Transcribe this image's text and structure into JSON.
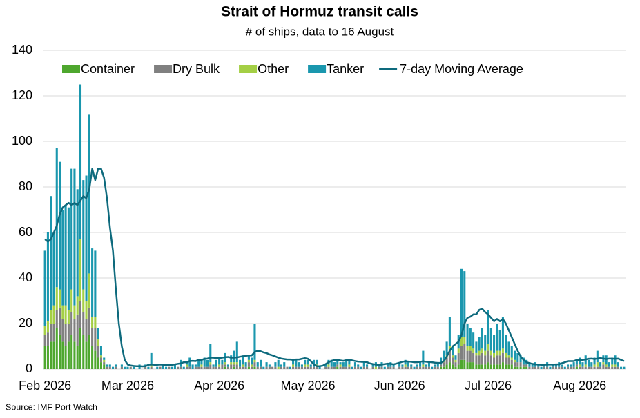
{
  "chart_data": {
    "type": "bar",
    "stacked": true,
    "title": "Strait of Hormuz transit calls",
    "subtitle": "# of ships, data to 16 August",
    "source": "Source: IMF Port Watch",
    "ylim": [
      0,
      140
    ],
    "yticks": [
      0,
      20,
      40,
      60,
      80,
      100,
      120,
      140
    ],
    "grid": true,
    "legend": "top",
    "categories": [
      "Feb 2026",
      null,
      null,
      null,
      null,
      null,
      null,
      null,
      null,
      null,
      null,
      null,
      null,
      null,
      null,
      null,
      null,
      null,
      null,
      null,
      null,
      null,
      null,
      null,
      null,
      null,
      null,
      null,
      "Mar 2026",
      null,
      null,
      null,
      null,
      null,
      null,
      null,
      null,
      null,
      null,
      null,
      null,
      null,
      null,
      null,
      null,
      null,
      null,
      null,
      null,
      null,
      null,
      null,
      null,
      null,
      null,
      null,
      null,
      null,
      null,
      "Apr 2026",
      null,
      null,
      null,
      null,
      null,
      null,
      null,
      null,
      null,
      null,
      null,
      null,
      null,
      null,
      null,
      null,
      null,
      null,
      null,
      null,
      null,
      null,
      null,
      null,
      null,
      null,
      null,
      null,
      null,
      "May 2026",
      null,
      null,
      null,
      null,
      null,
      null,
      null,
      null,
      null,
      null,
      null,
      null,
      null,
      null,
      null,
      null,
      null,
      null,
      null,
      null,
      null,
      null,
      null,
      null,
      null,
      null,
      null,
      null,
      null,
      null,
      "Jun 2026",
      null,
      null,
      null,
      null,
      null,
      null,
      null,
      null,
      null,
      null,
      null,
      null,
      null,
      null,
      null,
      null,
      null,
      null,
      null,
      null,
      null,
      null,
      null,
      null,
      null,
      null,
      null,
      null,
      null,
      "Jul 2026",
      null,
      null,
      null,
      null,
      null,
      null,
      null,
      null,
      null,
      null,
      null,
      null,
      null,
      null,
      null,
      null,
      null,
      null,
      null,
      null,
      null,
      null,
      null,
      null,
      null,
      null,
      null,
      null,
      null,
      null,
      "Aug 2026",
      null,
      null,
      null,
      null,
      null,
      null,
      null,
      null,
      null,
      null,
      null,
      null,
      null,
      null,
      null
    ],
    "series": [
      {
        "name": "Container",
        "color": "#4ea72e",
        "values": [
          10,
          10,
          12,
          12,
          18,
          15,
          12,
          10,
          12,
          15,
          12,
          10,
          18,
          15,
          12,
          15,
          10,
          8,
          5,
          3,
          2,
          0,
          0,
          0,
          0,
          0,
          0,
          0,
          0,
          0,
          0,
          0,
          0,
          0,
          0,
          0,
          0,
          0,
          0,
          0,
          0,
          0,
          0,
          0,
          0,
          0,
          0,
          0,
          0,
          0,
          0,
          0,
          0,
          0,
          0,
          0,
          0,
          0,
          0,
          0,
          0,
          1,
          0,
          0,
          1,
          0,
          0,
          0,
          0,
          1,
          0,
          1,
          0,
          0,
          0,
          0,
          0,
          0,
          0,
          0,
          0,
          0,
          0,
          0,
          0,
          0,
          0,
          0,
          0,
          0,
          0,
          0,
          0,
          0,
          0,
          0,
          0,
          0,
          0,
          1,
          0,
          0,
          0,
          0,
          0,
          0,
          0,
          0,
          0,
          0,
          0,
          0,
          0,
          0,
          0,
          0,
          0,
          0,
          0,
          0,
          0,
          0,
          0,
          0,
          0,
          0,
          0,
          0,
          0,
          0,
          0,
          0,
          0,
          0,
          1,
          1,
          2,
          3,
          2,
          1,
          2,
          4,
          4,
          3,
          3,
          3,
          2,
          2,
          2,
          2,
          3,
          2,
          2,
          2,
          2,
          3,
          2,
          2,
          2,
          1,
          1,
          1,
          1,
          1,
          0,
          0,
          0,
          0,
          0,
          0,
          0,
          0,
          0,
          0,
          0,
          0,
          0,
          0,
          0,
          0,
          1,
          0,
          0,
          0,
          0,
          0,
          0,
          0,
          0,
          0,
          0,
          0,
          0,
          0,
          0,
          0,
          0
        ]
      },
      {
        "name": "Dry Bulk",
        "color": "#808080",
        "values": [
          5,
          6,
          8,
          8,
          8,
          12,
          10,
          10,
          8,
          10,
          10,
          14,
          12,
          10,
          10,
          12,
          8,
          10,
          5,
          2,
          1,
          1,
          1,
          0,
          1,
          0,
          1,
          0,
          0,
          1,
          0,
          0,
          0,
          0,
          1,
          0,
          1,
          0,
          0,
          1,
          0,
          0,
          1,
          0,
          0,
          1,
          1,
          0,
          1,
          1,
          0,
          1,
          1,
          1,
          1,
          1,
          2,
          1,
          1,
          1,
          2,
          1,
          1,
          2,
          1,
          2,
          1,
          1,
          1,
          2,
          1,
          2,
          1,
          1,
          0,
          1,
          1,
          1,
          1,
          0,
          1,
          1,
          1,
          0,
          1,
          1,
          1,
          1,
          1,
          1,
          1,
          1,
          1,
          0,
          0,
          1,
          1,
          1,
          1,
          1,
          1,
          1,
          1,
          1,
          0,
          1,
          1,
          0,
          1,
          1,
          0,
          1,
          0,
          1,
          1,
          0,
          1,
          1,
          1,
          0,
          1,
          1,
          1,
          1,
          1,
          0,
          1,
          1,
          1,
          1,
          1,
          0,
          1,
          1,
          1,
          2,
          3,
          5,
          3,
          2,
          5,
          6,
          7,
          5,
          5,
          4,
          4,
          4,
          5,
          4,
          5,
          4,
          3,
          4,
          4,
          4,
          3,
          3,
          2,
          2,
          2,
          2,
          1,
          1,
          1,
          1,
          1,
          1,
          0,
          1,
          1,
          0,
          1,
          1,
          1,
          1,
          0,
          1,
          1,
          1,
          1,
          1,
          1,
          1,
          1,
          1,
          1,
          1,
          1,
          2,
          1,
          1,
          1,
          1,
          1,
          0,
          0
        ]
      },
      {
        "name": "Other",
        "color": "#a4cf45",
        "values": [
          4,
          5,
          6,
          8,
          10,
          8,
          6,
          8,
          6,
          10,
          6,
          8,
          27,
          10,
          8,
          15,
          5,
          5,
          3,
          1,
          1,
          0,
          0,
          0,
          0,
          0,
          0,
          0,
          0,
          0,
          0,
          0,
          0,
          0,
          0,
          0,
          1,
          0,
          0,
          0,
          0,
          0,
          0,
          0,
          0,
          0,
          0,
          0,
          1,
          0,
          0,
          0,
          0,
          1,
          0,
          0,
          1,
          0,
          0,
          1,
          0,
          1,
          0,
          1,
          1,
          1,
          0,
          1,
          0,
          1,
          1,
          1,
          0,
          0,
          0,
          0,
          0,
          0,
          0,
          1,
          0,
          0,
          0,
          0,
          1,
          0,
          0,
          0,
          1,
          1,
          0,
          0,
          1,
          0,
          0,
          0,
          1,
          0,
          0,
          0,
          1,
          0,
          0,
          1,
          0,
          0,
          0,
          0,
          0,
          0,
          0,
          0,
          1,
          0,
          0,
          0,
          0,
          0,
          0,
          0,
          0,
          0,
          1,
          0,
          0,
          0,
          0,
          0,
          1,
          0,
          0,
          0,
          0,
          0,
          0,
          1,
          1,
          2,
          1,
          1,
          2,
          4,
          3,
          2,
          2,
          2,
          1,
          2,
          2,
          2,
          3,
          2,
          2,
          2,
          2,
          2,
          2,
          1,
          1,
          1,
          0,
          0,
          0,
          0,
          0,
          0,
          0,
          0,
          0,
          0,
          0,
          0,
          0,
          0,
          0,
          0,
          0,
          0,
          0,
          0,
          0,
          1,
          0,
          1,
          0,
          0,
          1,
          2,
          0,
          1,
          1,
          0,
          1,
          1,
          0,
          0,
          0
        ]
      },
      {
        "name": "Tanker",
        "color": "#1a97ae",
        "values": [
          33,
          39,
          50,
          32,
          61,
          56,
          42,
          44,
          45,
          53,
          60,
          47,
          68,
          48,
          55,
          70,
          30,
          29,
          5,
          4,
          1,
          1,
          1,
          1,
          1,
          0,
          1,
          1,
          1,
          0,
          1,
          0,
          2,
          0,
          1,
          1,
          5,
          0,
          1,
          0,
          2,
          1,
          0,
          1,
          2,
          0,
          3,
          1,
          1,
          4,
          2,
          1,
          3,
          2,
          4,
          3,
          8,
          1,
          3,
          3,
          2,
          4,
          1,
          3,
          5,
          9,
          3,
          4,
          2,
          2,
          3,
          16,
          2,
          3,
          1,
          2,
          1,
          0,
          2,
          3,
          1,
          2,
          0,
          1,
          2,
          3,
          2,
          1,
          2,
          2,
          1,
          3,
          2,
          1,
          0,
          1,
          2,
          3,
          2,
          2,
          1,
          2,
          3,
          2,
          1,
          2,
          1,
          1,
          2,
          1,
          0,
          1,
          2,
          1,
          2,
          1,
          1,
          2,
          1,
          0,
          2,
          1,
          2,
          2,
          1,
          1,
          1,
          2,
          6,
          1,
          2,
          1,
          1,
          2,
          3,
          4,
          6,
          13,
          4,
          2,
          6,
          30,
          29,
          10,
          8,
          7,
          5,
          6,
          9,
          7,
          15,
          10,
          8,
          12,
          9,
          14,
          8,
          6,
          5,
          4,
          4,
          3,
          3,
          2,
          2,
          1,
          2,
          1,
          1,
          1,
          2,
          1,
          1,
          1,
          2,
          1,
          1,
          1,
          1,
          2,
          2,
          3,
          2,
          4,
          3,
          2,
          3,
          5,
          2,
          3,
          4,
          2,
          3,
          4,
          2,
          1,
          1
        ]
      },
      {
        "name": "7-day Moving Average",
        "type": "line",
        "color": "#0e6a7d",
        "values": [
          57,
          56,
          57,
          60,
          63,
          68,
          71,
          72,
          73,
          72,
          73,
          72,
          74,
          76,
          75,
          79,
          88,
          83,
          88,
          88,
          84,
          75,
          62,
          52,
          35,
          20,
          10,
          4,
          2,
          1.6,
          1.4,
          1.3,
          1.3,
          1.2,
          1.3,
          1.9,
          2,
          1.9,
          1.9,
          2,
          1.9,
          1.8,
          1.9,
          1.8,
          2.1,
          2.3,
          2.5,
          3,
          3,
          3.5,
          3.6,
          3.5,
          4,
          4,
          4.5,
          4.6,
          5,
          5,
          4.8,
          4.8,
          5,
          5.2,
          5.3,
          5,
          5,
          5.1,
          5.4,
          5.6,
          5.8,
          6,
          6,
          7.5,
          8,
          7.8,
          7.3,
          7,
          6.4,
          6,
          5.5,
          5,
          4.6,
          4.4,
          4.2,
          4.2,
          4,
          4.2,
          4.2,
          4.5,
          4.8,
          4.5,
          3.5,
          2,
          1.3,
          1.3,
          1.5,
          2.2,
          3,
          3.6,
          4,
          4,
          3.8,
          3.6,
          3.9,
          4.1,
          3.8,
          3.5,
          3.3,
          3.2,
          3.2,
          3,
          2.5,
          2.2,
          2,
          1.8,
          2,
          2.2,
          2.4,
          2.3,
          2.1,
          2.4,
          2.8,
          3.2,
          3.4,
          3.3,
          3.2,
          3,
          3,
          3.2,
          3.4,
          3.2,
          3.1,
          3,
          2.8,
          2.7,
          2.7,
          3.5,
          5.5,
          8,
          10,
          11,
          12,
          15,
          20,
          22.5,
          23,
          24,
          24,
          26,
          26.5,
          25,
          24,
          22.5,
          21,
          22,
          21,
          22,
          20,
          17,
          14,
          11,
          8,
          5.5,
          4,
          3,
          2.6,
          2.3,
          2.1,
          2,
          1.9,
          1.9,
          2,
          2,
          2,
          2.1,
          2.1,
          2.6,
          3,
          3.5,
          3.5,
          3.5,
          4,
          4,
          4,
          4.2,
          4.5,
          4.6,
          4.4,
          4.6,
          4.8,
          4.6,
          4.4,
          4.6,
          4.6,
          4.5,
          4.6,
          4,
          3.5
        ]
      }
    ]
  }
}
